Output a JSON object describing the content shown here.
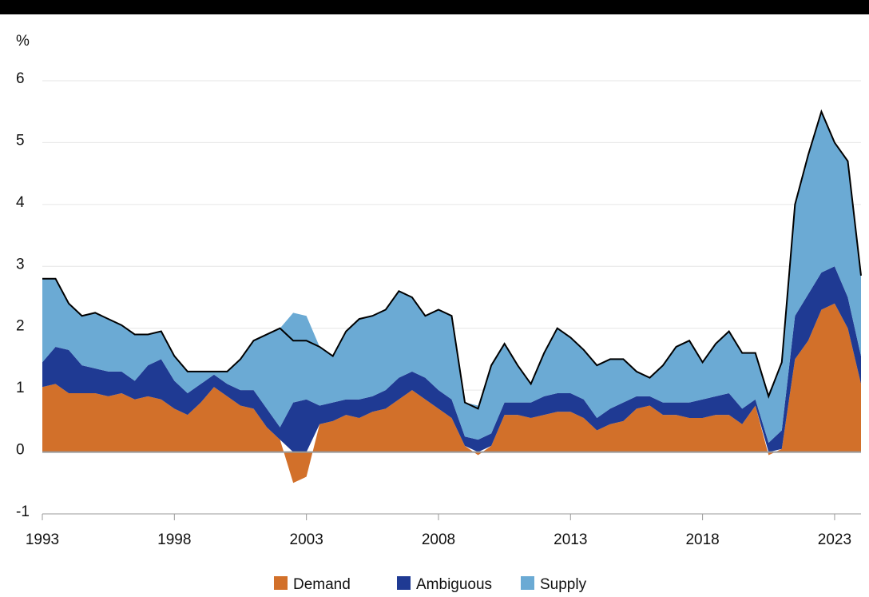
{
  "chart_data": {
    "type": "stacked_area",
    "ylabel": "%",
    "x": [
      1993.0,
      1993.5,
      1994.0,
      1994.5,
      1995.0,
      1995.5,
      1996.0,
      1996.5,
      1997.0,
      1997.5,
      1998.0,
      1998.5,
      1999.0,
      1999.5,
      2000.0,
      2000.5,
      2001.0,
      2001.5,
      2002.0,
      2002.5,
      2003.0,
      2003.5,
      2004.0,
      2004.5,
      2005.0,
      2005.5,
      2006.0,
      2006.5,
      2007.0,
      2007.5,
      2008.0,
      2008.5,
      2009.0,
      2009.5,
      2010.0,
      2010.5,
      2011.0,
      2011.5,
      2012.0,
      2012.5,
      2013.0,
      2013.5,
      2014.0,
      2014.5,
      2015.0,
      2015.5,
      2016.0,
      2016.5,
      2017.0,
      2017.5,
      2018.0,
      2018.5,
      2019.0,
      2019.5,
      2020.0,
      2020.5,
      2021.0,
      2021.5,
      2022.0,
      2022.5,
      2023.0,
      2023.5,
      2024.0
    ],
    "series": [
      {
        "name": "Demand",
        "color": "#d2702a",
        "values": [
          1.05,
          1.1,
          0.95,
          0.95,
          0.95,
          0.9,
          0.95,
          0.85,
          0.9,
          0.85,
          0.7,
          0.6,
          0.8,
          1.05,
          0.9,
          0.75,
          0.7,
          0.4,
          0.2,
          -0.5,
          -0.4,
          0.45,
          0.5,
          0.6,
          0.55,
          0.65,
          0.7,
          0.85,
          1.0,
          0.85,
          0.7,
          0.55,
          0.1,
          -0.05,
          0.1,
          0.6,
          0.6,
          0.55,
          0.6,
          0.65,
          0.65,
          0.55,
          0.35,
          0.45,
          0.5,
          0.7,
          0.75,
          0.6,
          0.6,
          0.55,
          0.55,
          0.6,
          0.6,
          0.45,
          0.75,
          -0.05,
          0.05,
          1.5,
          1.8,
          2.3,
          2.4,
          2.0,
          1.1
        ]
      },
      {
        "name": "Ambiguous",
        "color": "#1f3a93",
        "values": [
          0.4,
          0.6,
          0.7,
          0.45,
          0.4,
          0.4,
          0.35,
          0.3,
          0.5,
          0.65,
          0.45,
          0.35,
          0.3,
          0.2,
          0.2,
          0.25,
          0.3,
          0.3,
          0.2,
          0.8,
          0.85,
          0.3,
          0.3,
          0.25,
          0.3,
          0.25,
          0.3,
          0.35,
          0.3,
          0.35,
          0.3,
          0.3,
          0.15,
          0.2,
          0.2,
          0.2,
          0.2,
          0.25,
          0.3,
          0.3,
          0.3,
          0.3,
          0.2,
          0.25,
          0.3,
          0.2,
          0.15,
          0.2,
          0.2,
          0.25,
          0.3,
          0.3,
          0.35,
          0.25,
          0.1,
          0.15,
          0.3,
          0.7,
          0.75,
          0.6,
          0.6,
          0.5,
          0.45
        ]
      },
      {
        "name": "Supply",
        "color": "#6baad4",
        "values": [
          1.35,
          1.1,
          0.75,
          0.8,
          0.9,
          0.85,
          0.75,
          0.75,
          0.5,
          0.45,
          0.4,
          0.35,
          0.2,
          0.05,
          0.2,
          0.5,
          0.8,
          1.2,
          1.6,
          1.45,
          1.35,
          0.95,
          0.75,
          1.1,
          1.3,
          1.3,
          1.3,
          1.4,
          1.2,
          1.0,
          1.3,
          1.35,
          0.55,
          0.55,
          1.1,
          0.95,
          0.6,
          0.3,
          0.7,
          1.05,
          0.9,
          0.8,
          0.85,
          0.8,
          0.7,
          0.4,
          0.3,
          0.6,
          0.9,
          1.0,
          0.6,
          0.85,
          1.0,
          0.9,
          0.75,
          0.8,
          1.1,
          1.8,
          2.25,
          2.6,
          2.0,
          2.2,
          1.3
        ]
      }
    ],
    "line": {
      "color": "#000000",
      "values": [
        2.8,
        2.8,
        2.4,
        2.2,
        2.25,
        2.15,
        2.05,
        1.9,
        1.9,
        1.95,
        1.55,
        1.3,
        1.3,
        1.3,
        1.3,
        1.5,
        1.8,
        1.9,
        2.0,
        1.8,
        1.8,
        1.7,
        1.55,
        1.95,
        2.15,
        2.2,
        2.3,
        2.6,
        2.5,
        2.2,
        2.3,
        2.2,
        0.8,
        0.7,
        1.4,
        1.75,
        1.4,
        1.1,
        1.6,
        2.0,
        1.85,
        1.65,
        1.4,
        1.5,
        1.5,
        1.3,
        1.2,
        1.4,
        1.7,
        1.8,
        1.45,
        1.75,
        1.95,
        1.6,
        1.6,
        0.9,
        1.45,
        4.0,
        4.8,
        5.5,
        5.0,
        4.7,
        2.85
      ]
    },
    "xlim": [
      1993,
      2024
    ],
    "xticks": [
      1993,
      1998,
      2003,
      2008,
      2013,
      2018,
      2023
    ],
    "ylim": [
      -1,
      6
    ],
    "yticks": [
      -1,
      0,
      1,
      2,
      3,
      4,
      5,
      6
    ],
    "grid": true
  }
}
